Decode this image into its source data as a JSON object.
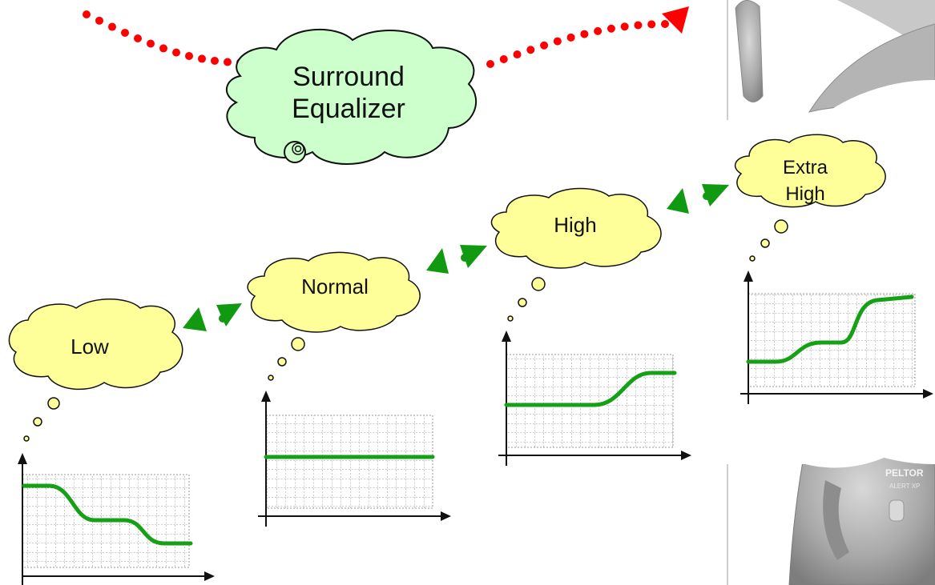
{
  "colors": {
    "red_arrow": "#ff0000",
    "green_arrow": "#119911",
    "green_curve": "#16a016",
    "green_cloud": "#ccffcc",
    "yellow_cloud": "#ffff99",
    "grid": "#9a9a9a",
    "stroke": "#111111"
  },
  "surround": {
    "line1": "Surround",
    "line2": "Equalizer"
  },
  "modes": [
    {
      "label": "Low",
      "curve": "descending-two-step"
    },
    {
      "label": "Normal",
      "curve": "flat"
    },
    {
      "label": "High",
      "curve": "rising-one-step"
    },
    {
      "label_line1": "Extra",
      "label_line2": "High",
      "curve": "rising-two-step"
    }
  ],
  "headset": {
    "brand": "PELTOR",
    "model": "ALERT XP"
  }
}
